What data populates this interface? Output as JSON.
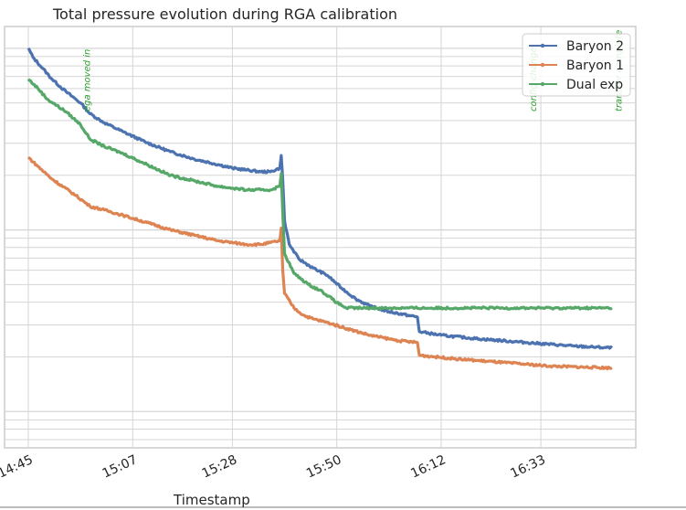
{
  "chart_data": {
    "type": "line",
    "title": "Total pressure evolution during RGA calibration",
    "xlabel": "Timestamp",
    "ylabel": "",
    "x_ticks": [
      "14:45",
      "15:07",
      "15:28",
      "15:50",
      "16:12",
      "16:33"
    ],
    "x_tick_minutes": [
      0,
      22,
      43,
      65,
      87,
      108
    ],
    "xlim_minutes": [
      -5,
      128
    ],
    "y_scale": "log",
    "ylim_relative": [
      -2.2,
      0.12
    ],
    "grid": true,
    "legend_position": "top-right",
    "series": [
      {
        "name": "Baryon 2",
        "color": "#4c72b0",
        "points": [
          [
            0,
            0.0
          ],
          [
            1,
            -0.05
          ],
          [
            3,
            -0.11
          ],
          [
            5,
            -0.17
          ],
          [
            8,
            -0.24
          ],
          [
            11,
            -0.3
          ],
          [
            13,
            -0.36
          ],
          [
            16,
            -0.41
          ],
          [
            20,
            -0.46
          ],
          [
            25,
            -0.52
          ],
          [
            30,
            -0.57
          ],
          [
            35,
            -0.61
          ],
          [
            40,
            -0.64
          ],
          [
            43,
            -0.66
          ],
          [
            46,
            -0.67
          ],
          [
            49,
            -0.68
          ],
          [
            51,
            -0.68
          ],
          [
            53,
            -0.66
          ],
          [
            53.3,
            -0.59
          ],
          [
            53.6,
            -0.72
          ],
          [
            54,
            -0.95
          ],
          [
            55,
            -1.08
          ],
          [
            57,
            -1.16
          ],
          [
            60,
            -1.21
          ],
          [
            63,
            -1.25
          ],
          [
            66,
            -1.32
          ],
          [
            69,
            -1.38
          ],
          [
            72,
            -1.42
          ],
          [
            76,
            -1.45
          ],
          [
            80,
            -1.47
          ],
          [
            82,
            -1.48
          ],
          [
            82.4,
            -1.56
          ],
          [
            87,
            -1.58
          ],
          [
            95,
            -1.6
          ],
          [
            105,
            -1.62
          ],
          [
            115,
            -1.64
          ],
          [
            123,
            -1.65
          ]
        ]
      },
      {
        "name": "Baryon 1",
        "color": "#dd8452",
        "points": [
          [
            0,
            -0.6
          ],
          [
            2,
            -0.65
          ],
          [
            5,
            -0.72
          ],
          [
            10,
            -0.81
          ],
          [
            13,
            -0.87
          ],
          [
            16,
            -0.89
          ],
          [
            20,
            -0.92
          ],
          [
            25,
            -0.96
          ],
          [
            30,
            -1.0
          ],
          [
            35,
            -1.03
          ],
          [
            40,
            -1.06
          ],
          [
            43,
            -1.07
          ],
          [
            46,
            -1.08
          ],
          [
            49,
            -1.08
          ],
          [
            51,
            -1.07
          ],
          [
            53,
            -1.06
          ],
          [
            53.3,
            -0.99
          ],
          [
            53.6,
            -1.22
          ],
          [
            54,
            -1.35
          ],
          [
            56,
            -1.43
          ],
          [
            58,
            -1.47
          ],
          [
            60,
            -1.49
          ],
          [
            63,
            -1.51
          ],
          [
            68,
            -1.55
          ],
          [
            72,
            -1.58
          ],
          [
            76,
            -1.6
          ],
          [
            78,
            -1.61
          ],
          [
            82,
            -1.62
          ],
          [
            82.4,
            -1.69
          ],
          [
            90,
            -1.71
          ],
          [
            100,
            -1.73
          ],
          [
            110,
            -1.75
          ],
          [
            123,
            -1.76
          ]
        ]
      },
      {
        "name": "Dual exp",
        "color": "#55a868",
        "points": [
          [
            0,
            -0.17
          ],
          [
            2,
            -0.22
          ],
          [
            4,
            -0.28
          ],
          [
            8,
            -0.35
          ],
          [
            11,
            -0.42
          ],
          [
            13,
            -0.5
          ],
          [
            16,
            -0.54
          ],
          [
            20,
            -0.58
          ],
          [
            25,
            -0.64
          ],
          [
            30,
            -0.7
          ],
          [
            35,
            -0.73
          ],
          [
            40,
            -0.76
          ],
          [
            43,
            -0.77
          ],
          [
            46,
            -0.78
          ],
          [
            49,
            -0.78
          ],
          [
            51,
            -0.78
          ],
          [
            53,
            -0.76
          ],
          [
            53.3,
            -0.69
          ],
          [
            53.6,
            -0.9
          ],
          [
            54,
            -1.13
          ],
          [
            56,
            -1.24
          ],
          [
            59,
            -1.3
          ],
          [
            62,
            -1.34
          ],
          [
            65,
            -1.4
          ],
          [
            67,
            -1.43
          ],
          [
            70,
            -1.43
          ],
          [
            80,
            -1.43
          ],
          [
            90,
            -1.43
          ],
          [
            100,
            -1.43
          ],
          [
            110,
            -1.43
          ],
          [
            123,
            -1.43
          ]
        ]
      }
    ],
    "annotations": [
      {
        "text": "ega moved in",
        "x_minutes": 13,
        "color": "#2ca02c"
      },
      {
        "text": "config change",
        "x_minutes": 107,
        "color": "#2ca02c"
      },
      {
        "text": "transfer complete",
        "x_minutes": 125,
        "color": "#2ca02c"
      }
    ]
  }
}
